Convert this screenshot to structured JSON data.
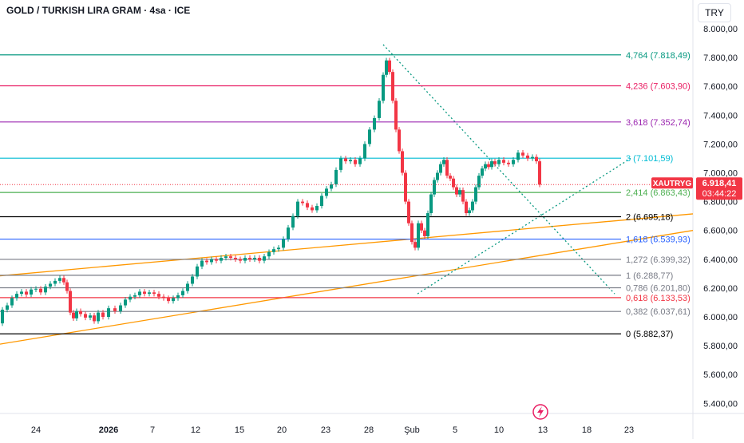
{
  "header": {
    "title": "GOLD / TURKISH LIRA GRAM · 4sa · ICE",
    "currency_button": "TRY"
  },
  "colors": {
    "up": "#089981",
    "down": "#f23645",
    "fib_4764": "#089981",
    "fib_4236": "#e91e63",
    "fib_3618": "#9c27b0",
    "fib_3": "#00bcd4",
    "fib_2414": "#4caf50",
    "fib_2": "#000000",
    "fib_1618": "#2962ff",
    "fib_gray": "#787b86",
    "fib_0618": "#f23645",
    "trend": "#ff9800",
    "triangle": "#089981",
    "price_label": "#f23645"
  },
  "price_tag": {
    "symbol": "XAUTRYG",
    "price": "6.918,41",
    "countdown": "03:44:22"
  },
  "icon": "lightning-icon",
  "chart_data": {
    "type": "candlestick",
    "y_axis": {
      "range": [
        5300,
        8100
      ],
      "ticks": [
        {
          "v": 8000,
          "label": "8.000,00"
        },
        {
          "v": 7800,
          "label": "7.800,00"
        },
        {
          "v": 7600,
          "label": "7.600,00"
        },
        {
          "v": 7400,
          "label": "7.400,00"
        },
        {
          "v": 7200,
          "label": "7.200,00"
        },
        {
          "v": 7000,
          "label": "7.000,00"
        },
        {
          "v": 6800,
          "label": "6.800,00"
        },
        {
          "v": 6600,
          "label": "6.600,00"
        },
        {
          "v": 6400,
          "label": "6.400,00"
        },
        {
          "v": 6200,
          "label": "6.200,00"
        },
        {
          "v": 6000,
          "label": "6.000,00"
        },
        {
          "v": 5800,
          "label": "5.800,00"
        },
        {
          "v": 5600,
          "label": "5.600,00"
        },
        {
          "v": 5400,
          "label": "5.400,00"
        }
      ]
    },
    "x_axis": {
      "ticks": [
        {
          "label": "24",
          "bold": false
        },
        {
          "label": "2026",
          "bold": true
        },
        {
          "label": "7",
          "bold": false
        },
        {
          "label": "12",
          "bold": false
        },
        {
          "label": "15",
          "bold": false
        },
        {
          "label": "20",
          "bold": false
        },
        {
          "label": "23",
          "bold": false
        },
        {
          "label": "28",
          "bold": false
        },
        {
          "label": "Şub",
          "bold": false
        },
        {
          "label": "5",
          "bold": false
        },
        {
          "label": "10",
          "bold": false
        },
        {
          "label": "13",
          "bold": false
        },
        {
          "label": "18",
          "bold": false
        },
        {
          "label": "23",
          "bold": false
        }
      ]
    },
    "fib_levels": [
      {
        "ratio": "4,764",
        "price": 7818.49,
        "label": "4,764 (7.818,49)",
        "color_key": "fib_4764"
      },
      {
        "ratio": "4,236",
        "price": 7603.9,
        "label": "4,236 (7.603,90)",
        "color_key": "fib_4236"
      },
      {
        "ratio": "3,618",
        "price": 7352.74,
        "label": "3,618 (7.352,74)",
        "color_key": "fib_3618"
      },
      {
        "ratio": "3",
        "price": 7101.59,
        "label": "3 (7.101,59)",
        "color_key": "fib_3"
      },
      {
        "ratio": "2,414",
        "price": 6863.43,
        "label": "2,414 (6.863,43)",
        "color_key": "fib_2414"
      },
      {
        "ratio": "2",
        "price": 6695.18,
        "label": "2 (6.695,18)",
        "color_key": "fib_2"
      },
      {
        "ratio": "1,618",
        "price": 6539.93,
        "label": "1,618 (6.539,93)",
        "color_key": "fib_1618"
      },
      {
        "ratio": "1,272",
        "price": 6399.32,
        "label": "1,272 (6.399,32)",
        "color_key": "fib_gray"
      },
      {
        "ratio": "1",
        "price": 6288.77,
        "label": "1 (6.288,77)",
        "color_key": "fib_gray"
      },
      {
        "ratio": "0,786",
        "price": 6201.8,
        "label": "0,786 (6.201,80)",
        "color_key": "fib_gray"
      },
      {
        "ratio": "0,618",
        "price": 6133.53,
        "label": "0,618 (6.133,53)",
        "color_key": "fib_0618"
      },
      {
        "ratio": "0,382",
        "price": 6037.61,
        "label": "0,382 (6.037,61)",
        "color_key": "fib_gray"
      },
      {
        "ratio": "0",
        "price": 5882.37,
        "label": "0 (5.882,37)",
        "color_key": "fib_2"
      }
    ],
    "last_price": 6918.41,
    "path_points": [
      [
        0,
        5955
      ],
      [
        6,
        6050
      ],
      [
        12,
        6080
      ],
      [
        18,
        6130
      ],
      [
        24,
        6160
      ],
      [
        30,
        6175
      ],
      [
        36,
        6155
      ],
      [
        42,
        6190
      ],
      [
        48,
        6195
      ],
      [
        54,
        6170
      ],
      [
        60,
        6210
      ],
      [
        66,
        6230
      ],
      [
        72,
        6250
      ],
      [
        78,
        6270
      ],
      [
        82,
        6240
      ],
      [
        86,
        6180
      ],
      [
        90,
        6030
      ],
      [
        94,
        5990
      ],
      [
        98,
        6040
      ],
      [
        104,
        6020
      ],
      [
        110,
        5995
      ],
      [
        116,
        6010
      ],
      [
        120,
        5970
      ],
      [
        126,
        6030
      ],
      [
        132,
        6000
      ],
      [
        140,
        6060
      ],
      [
        148,
        6040
      ],
      [
        154,
        6080
      ],
      [
        160,
        6120
      ],
      [
        166,
        6140
      ],
      [
        172,
        6150
      ],
      [
        178,
        6175
      ],
      [
        184,
        6160
      ],
      [
        190,
        6170
      ],
      [
        196,
        6160
      ],
      [
        202,
        6140
      ],
      [
        208,
        6130
      ],
      [
        214,
        6110
      ],
      [
        220,
        6130
      ],
      [
        226,
        6150
      ],
      [
        232,
        6180
      ],
      [
        238,
        6230
      ],
      [
        244,
        6280
      ],
      [
        250,
        6350
      ],
      [
        256,
        6390
      ],
      [
        262,
        6380
      ],
      [
        268,
        6400
      ],
      [
        274,
        6390
      ],
      [
        280,
        6410
      ],
      [
        286,
        6420
      ],
      [
        292,
        6410
      ],
      [
        298,
        6400
      ],
      [
        304,
        6390
      ],
      [
        310,
        6410
      ],
      [
        316,
        6400
      ],
      [
        322,
        6410
      ],
      [
        328,
        6390
      ],
      [
        334,
        6420
      ],
      [
        340,
        6450
      ],
      [
        346,
        6470
      ],
      [
        352,
        6480
      ],
      [
        358,
        6540
      ],
      [
        364,
        6620
      ],
      [
        370,
        6700
      ],
      [
        376,
        6800
      ],
      [
        382,
        6790
      ],
      [
        388,
        6760
      ],
      [
        394,
        6740
      ],
      [
        400,
        6770
      ],
      [
        406,
        6840
      ],
      [
        412,
        6890
      ],
      [
        418,
        6920
      ],
      [
        424,
        7020
      ],
      [
        430,
        7100
      ],
      [
        436,
        7080
      ],
      [
        442,
        7090
      ],
      [
        448,
        7060
      ],
      [
        454,
        7100
      ],
      [
        460,
        7200
      ],
      [
        466,
        7300
      ],
      [
        472,
        7380
      ],
      [
        478,
        7500
      ],
      [
        482,
        7680
      ],
      [
        486,
        7780
      ],
      [
        490,
        7700
      ],
      [
        494,
        7500
      ],
      [
        498,
        7300
      ],
      [
        502,
        7150
      ],
      [
        506,
        7000
      ],
      [
        510,
        6800
      ],
      [
        514,
        6650
      ],
      [
        518,
        6520
      ],
      [
        522,
        6480
      ],
      [
        526,
        6650
      ],
      [
        530,
        6600
      ],
      [
        534,
        6560
      ],
      [
        538,
        6720
      ],
      [
        542,
        6850
      ],
      [
        546,
        6950
      ],
      [
        550,
        7000
      ],
      [
        554,
        7060
      ],
      [
        558,
        7090
      ],
      [
        562,
        6980
      ],
      [
        566,
        6960
      ],
      [
        570,
        6900
      ],
      [
        574,
        6850
      ],
      [
        578,
        6880
      ],
      [
        582,
        6800
      ],
      [
        586,
        6720
      ],
      [
        590,
        6740
      ],
      [
        594,
        6800
      ],
      [
        598,
        6900
      ],
      [
        602,
        6980
      ],
      [
        606,
        7030
      ],
      [
        610,
        7060
      ],
      [
        614,
        7040
      ],
      [
        618,
        7080
      ],
      [
        622,
        7060
      ],
      [
        628,
        7090
      ],
      [
        634,
        7070
      ],
      [
        640,
        7060
      ],
      [
        646,
        7090
      ],
      [
        652,
        7140
      ],
      [
        658,
        7120
      ],
      [
        664,
        7100
      ],
      [
        670,
        7110
      ],
      [
        674,
        7080
      ],
      [
        678,
        6918
      ]
    ]
  }
}
